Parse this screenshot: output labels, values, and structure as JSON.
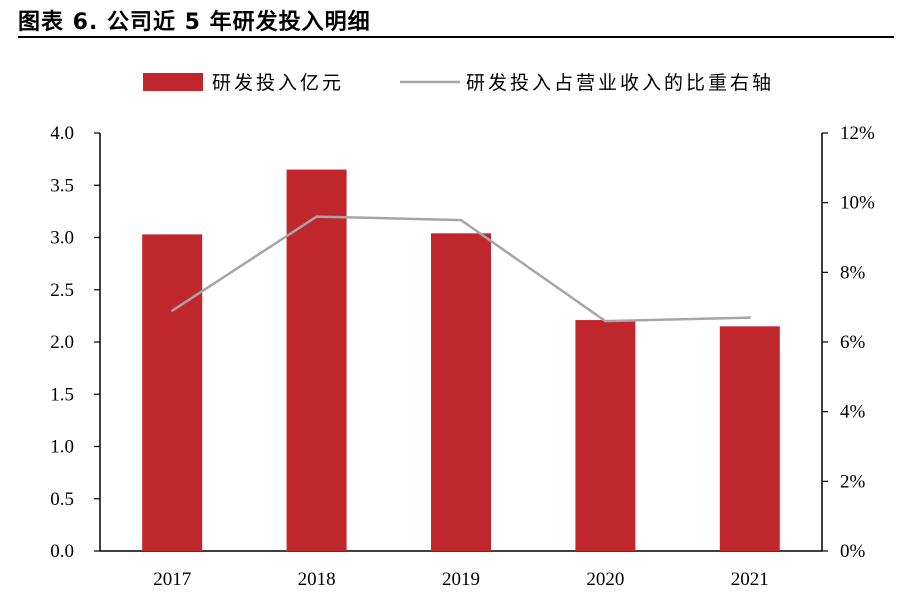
{
  "header": {
    "title": "图表 6.  公司近 5 年研发投入明细"
  },
  "chart_data": {
    "type": "bar",
    "categories": [
      "2017",
      "2018",
      "2019",
      "2020",
      "2021"
    ],
    "series": [
      {
        "name": "研发投入亿元",
        "type": "bar",
        "axis": "left",
        "values": [
          3.03,
          3.65,
          3.04,
          2.21,
          2.15
        ]
      },
      {
        "name": "研发投入占营业收入的比重右轴",
        "type": "line",
        "axis": "right",
        "values": [
          6.9,
          9.6,
          9.5,
          6.6,
          6.7
        ]
      }
    ],
    "y_left": {
      "min": 0,
      "max": 4.0,
      "ticks": [
        "0.0",
        "0.5",
        "1.0",
        "1.5",
        "2.0",
        "2.5",
        "3.0",
        "3.5",
        "4.0"
      ]
    },
    "y_right": {
      "min": 0,
      "max": 12,
      "ticks": [
        "0%",
        "2%",
        "4%",
        "6%",
        "8%",
        "10%",
        "12%"
      ]
    },
    "colors": {
      "bar": "#c0272d",
      "line": "#a6a6a6"
    },
    "legend": "top"
  }
}
